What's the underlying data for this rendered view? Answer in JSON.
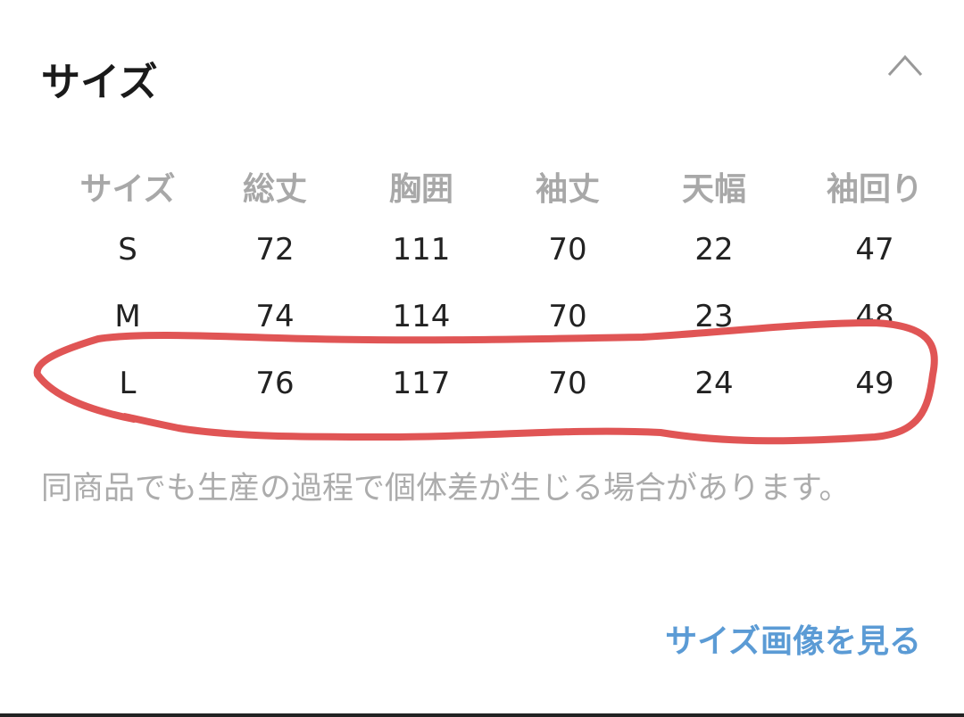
{
  "section": {
    "title": "サイズ",
    "toggle_icon": "chevron-up-icon"
  },
  "table": {
    "headers": [
      "サイズ",
      "総丈",
      "胸囲",
      "袖丈",
      "天幅",
      "袖回り"
    ],
    "rows": [
      [
        "S",
        "72",
        "111",
        "70",
        "22",
        "47"
      ],
      [
        "M",
        "74",
        "114",
        "70",
        "23",
        "48"
      ],
      [
        "L",
        "76",
        "117",
        "70",
        "24",
        "49"
      ]
    ],
    "highlighted_row": "L",
    "highlight_color": "#e05555"
  },
  "note": "同商品でも生産の過程で個体差が生じる場合があります。",
  "link": {
    "label": "サイズ画像を見る",
    "color": "#5b9bd5"
  }
}
